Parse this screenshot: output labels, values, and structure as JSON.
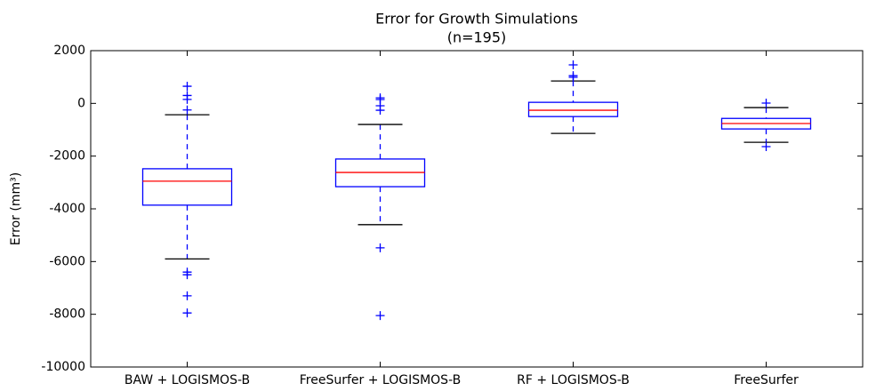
{
  "chart_data": {
    "type": "box",
    "title": "Error for Growth Simulations",
    "subtitle": "(n=195)",
    "y_label": "Error (mm³)",
    "categories": [
      "BAW + LOGISMOS-B",
      "FreeSurfer + LOGISMOS-B",
      "RF + LOGISMOS-B",
      "FreeSurfer"
    ],
    "whisker_high": [
      -430,
      -800,
      850,
      -160
    ],
    "q3": [
      -2480,
      -2110,
      40,
      -570
    ],
    "median": [
      -2950,
      -2620,
      -260,
      -765
    ],
    "q1": [
      -3860,
      -3160,
      -500,
      -970
    ],
    "whisker_low": [
      -5900,
      -4600,
      -1140,
      -1475
    ],
    "outliers": [
      [
        650,
        300,
        150,
        -250,
        -6400,
        -6500,
        -7300,
        -7950
      ],
      [
        210,
        145,
        -90,
        -260,
        -5480,
        -8050
      ],
      [
        1460,
        1050,
        990
      ],
      [
        10,
        -1640
      ]
    ],
    "box_color": "#0000ff",
    "median_color": "#ff0000",
    "cap_color": "#000000",
    "ylim": [
      -10000,
      2000
    ],
    "yticks": [
      -10000,
      -8000,
      -6000,
      -4000,
      -2000,
      0,
      2000
    ]
  }
}
